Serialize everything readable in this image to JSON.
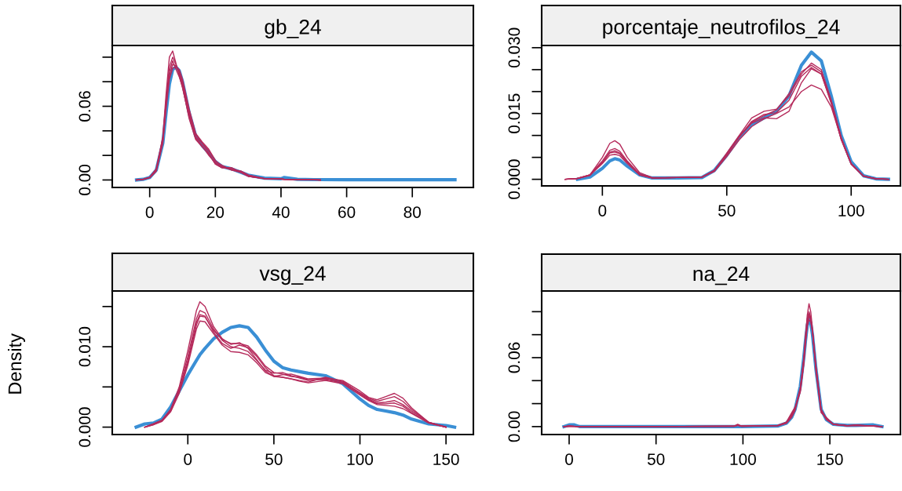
{
  "chart_data": [
    {
      "type": "line",
      "title": "gb_24",
      "grid": false,
      "marker": "none",
      "line_style": "solid",
      "x": [
        -4,
        -2,
        0,
        2,
        4,
        5,
        6,
        7,
        8,
        9,
        10,
        12,
        14,
        16,
        18,
        20,
        22,
        25,
        28,
        30,
        35,
        40,
        41,
        45,
        50,
        52,
        60,
        70,
        80,
        93
      ],
      "xlim": [
        -11.4,
        98.6
      ],
      "ylim": [
        -0.0061,
        0.1095
      ],
      "xticks": [
        0,
        20,
        40,
        60,
        80
      ],
      "yticks": [
        {
          "value": 0,
          "label": "0.00"
        },
        {
          "value": 0.02,
          "label": null
        },
        {
          "value": 0.04,
          "label": null
        },
        {
          "value": 0.06,
          "label": "0.06"
        },
        {
          "value": 0.08,
          "label": null
        },
        {
          "value": 0.1,
          "label": null
        }
      ],
      "series": [
        {
          "color": "#3a8fd5",
          "values": [
            0,
            0.0005,
            0.002,
            0.008,
            0.03,
            0.055,
            0.078,
            0.09,
            0.092,
            0.089,
            0.08,
            0.055,
            0.036,
            0.028,
            0.022,
            0.015,
            0.011,
            0.009,
            0.006,
            0.004,
            0.0015,
            0.001,
            0.002,
            0.0005,
            0.0003,
            0.0003,
            0.0002,
            0.0002,
            0.0002,
            0.0002
          ]
        },
        {
          "color": "#b52a5b",
          "values": [
            0,
            0.0005,
            0.002,
            0.009,
            0.035,
            0.07,
            0.1,
            0.105,
            0.095,
            0.085,
            0.075,
            0.052,
            0.035,
            0.03,
            0.022,
            0.013,
            0.01,
            0.01,
            0.006,
            0.003,
            0.001,
            0.0008,
            0.0005,
            0.0004,
            0.0002,
            0,
            null,
            null,
            null,
            null
          ]
        },
        {
          "color": "#b52a5b",
          "values": [
            0,
            0.0005,
            0.002,
            0.008,
            0.033,
            0.065,
            0.092,
            0.1,
            0.094,
            0.087,
            0.078,
            0.054,
            0.034,
            0.028,
            0.02,
            0.014,
            0.011,
            0.009,
            0.007,
            0.004,
            0.001,
            0.0008,
            0.0006,
            0.0004,
            0.0002,
            0,
            null,
            null,
            null,
            null
          ]
        },
        {
          "color": "#b52a5b",
          "values": [
            0,
            0.0004,
            0.0018,
            0.007,
            0.03,
            0.06,
            0.085,
            0.094,
            0.093,
            0.088,
            0.08,
            0.056,
            0.037,
            0.03,
            0.024,
            0.015,
            0.012,
            0.008,
            0.007,
            0.004,
            0.0012,
            0.0007,
            0.0005,
            0.0003,
            0.0001,
            0,
            null,
            null,
            null,
            null
          ]
        },
        {
          "color": "#b52a5b",
          "values": [
            0,
            0.0005,
            0.002,
            0.008,
            0.031,
            0.058,
            0.082,
            0.091,
            0.092,
            0.09,
            0.082,
            0.058,
            0.038,
            0.031,
            0.025,
            0.016,
            0.011,
            0.008,
            0.006,
            0.003,
            0.0012,
            0.0009,
            0.0005,
            0.0003,
            0.0002,
            0,
            null,
            null,
            null,
            null
          ]
        },
        {
          "color": "#b52a5b",
          "values": [
            0,
            0.0006,
            0.0022,
            0.009,
            0.034,
            0.063,
            0.088,
            0.097,
            0.09,
            0.084,
            0.076,
            0.05,
            0.033,
            0.027,
            0.021,
            0.013,
            0.01,
            0.009,
            0.006,
            0.003,
            0.001,
            0.0008,
            0.0004,
            0.0003,
            0.0001,
            0,
            null,
            null,
            null,
            null
          ]
        }
      ]
    },
    {
      "type": "line",
      "title": "porcentaje_neutrofilos_24",
      "grid": false,
      "marker": "none",
      "line_style": "solid",
      "x": [
        -15,
        -10,
        -5,
        0,
        3,
        5,
        7,
        10,
        15,
        20,
        30,
        40,
        45,
        50,
        55,
        60,
        65,
        70,
        75,
        80,
        84,
        88,
        92,
        96,
        100,
        105,
        110,
        115
      ],
      "xlim": [
        -24.4,
        119.8
      ],
      "ylim": [
        -0.0015,
        0.0305
      ],
      "xticks": [
        0,
        50,
        100
      ],
      "yticks": [
        {
          "value": 0,
          "label": "0.000"
        },
        {
          "value": 0.005,
          "label": null
        },
        {
          "value": 0.01,
          "label": null
        },
        {
          "value": 0.015,
          "label": "0.015"
        },
        {
          "value": 0.02,
          "label": null
        },
        {
          "value": 0.025,
          "label": null
        },
        {
          "value": 0.03,
          "label": "0.030"
        }
      ],
      "series": [
        {
          "color": "#3a8fd5",
          "values": [
            null,
            0,
            0.0005,
            0.0025,
            0.0042,
            0.0047,
            0.0044,
            0.003,
            0.001,
            0.0003,
            0.0003,
            0.0004,
            0.002,
            0.0055,
            0.0095,
            0.0125,
            0.014,
            0.0155,
            0.019,
            0.026,
            0.029,
            0.027,
            0.019,
            0.01,
            0.004,
            0.0008,
            0.0001,
            0
          ]
        },
        {
          "color": "#b52a5b",
          "values": [
            0,
            0.0002,
            0.001,
            0.005,
            0.0082,
            0.0088,
            0.008,
            0.005,
            0.0015,
            0.0004,
            0.0004,
            0.0005,
            0.002,
            0.006,
            0.01,
            0.014,
            0.0155,
            0.016,
            0.019,
            0.024,
            0.0265,
            0.025,
            0.018,
            0.0095,
            0.0035,
            0.0007,
            0.0001,
            0
          ]
        },
        {
          "color": "#b52a5b",
          "values": [
            0,
            0.0002,
            0.001,
            0.0042,
            0.0066,
            0.007,
            0.0064,
            0.0042,
            0.0012,
            0.0003,
            0.0004,
            0.0005,
            0.002,
            0.0058,
            0.0098,
            0.013,
            0.0145,
            0.0158,
            0.0195,
            0.0245,
            0.026,
            0.0245,
            0.0178,
            0.0095,
            0.0036,
            0.0007,
            0.0001,
            0
          ]
        },
        {
          "color": "#b52a5b",
          "values": [
            0,
            0.0002,
            0.0009,
            0.0039,
            0.0062,
            0.0065,
            0.006,
            0.004,
            0.0011,
            0.0003,
            0.0004,
            0.0005,
            0.0019,
            0.0056,
            0.0096,
            0.0128,
            0.014,
            0.0138,
            0.0155,
            0.022,
            0.0252,
            0.024,
            0.0175,
            0.0092,
            0.0035,
            0.0007,
            0.0001,
            0
          ]
        },
        {
          "color": "#b52a5b",
          "values": [
            0,
            0.0002,
            0.001,
            0.0038,
            0.006,
            0.0062,
            0.0058,
            0.0038,
            0.001,
            0.0003,
            0.0004,
            0.0005,
            0.002,
            0.0057,
            0.0097,
            0.0132,
            0.0148,
            0.0152,
            0.018,
            0.0235,
            0.0255,
            0.024,
            0.0172,
            0.009,
            0.0034,
            0.0007,
            0.0001,
            0
          ]
        },
        {
          "color": "#b52a5b",
          "values": [
            0,
            0.0002,
            0.0009,
            0.0036,
            0.0055,
            0.0057,
            0.0054,
            0.0036,
            0.001,
            0.0003,
            0.0004,
            0.0005,
            0.0018,
            0.0052,
            0.009,
            0.012,
            0.0138,
            0.015,
            0.0165,
            0.02,
            0.0215,
            0.0205,
            0.0165,
            0.0092,
            0.0036,
            0.0008,
            0.0001,
            0
          ]
        }
      ]
    },
    {
      "type": "line",
      "title": "vsg_24",
      "ylabel": "Density",
      "grid": false,
      "marker": "none",
      "line_style": "solid",
      "x": [
        -30,
        -25,
        -20,
        -15,
        -10,
        -5,
        0,
        5,
        7,
        10,
        15,
        20,
        25,
        30,
        35,
        40,
        45,
        50,
        55,
        60,
        65,
        70,
        80,
        90,
        100,
        105,
        110,
        115,
        120,
        125,
        130,
        140,
        150,
        155
      ],
      "xlim": [
        -43.9,
        165.9
      ],
      "ylim": [
        -0.00092,
        0.01693
      ],
      "xticks": [
        0,
        50,
        100,
        150
      ],
      "yticks": [
        {
          "value": 0,
          "label": "0.000"
        },
        {
          "value": 0.005,
          "label": null
        },
        {
          "value": 0.01,
          "label": "0.010"
        },
        {
          "value": 0.015,
          "label": null
        }
      ],
      "series": [
        {
          "color": "#3a8fd5",
          "values": [
            0,
            0.0004,
            0.0005,
            0.001,
            0.0025,
            0.0045,
            0.0065,
            0.0083,
            0.009,
            0.0098,
            0.011,
            0.0118,
            0.0124,
            0.0126,
            0.0124,
            0.0112,
            0.0096,
            0.0082,
            0.0074,
            0.0071,
            0.0069,
            0.0067,
            0.0064,
            0.0054,
            0.0035,
            0.0027,
            0.0022,
            0.002,
            0.0018,
            0.0015,
            0.001,
            0.0004,
            0.0002,
            0
          ]
        },
        {
          "color": "#b52a5b",
          "values": [
            null,
            0,
            0.0004,
            0.0009,
            0.0022,
            0.005,
            0.0095,
            0.0145,
            0.0156,
            0.015,
            0.0125,
            0.011,
            0.0103,
            0.0105,
            0.0098,
            0.0084,
            0.007,
            0.0063,
            0.0065,
            0.0066,
            0.0063,
            0.006,
            0.0061,
            0.0058,
            0.0045,
            0.0037,
            0.0034,
            0.0038,
            0.0042,
            0.0036,
            0.0024,
            0.0006,
            0,
            null
          ]
        },
        {
          "color": "#b52a5b",
          "values": [
            null,
            0,
            0.0004,
            0.0008,
            0.0021,
            0.0047,
            0.0088,
            0.0135,
            0.0145,
            0.0142,
            0.0122,
            0.0108,
            0.01,
            0.0098,
            0.0094,
            0.0083,
            0.0071,
            0.0067,
            0.0068,
            0.0064,
            0.0061,
            0.0058,
            0.006,
            0.0056,
            0.0043,
            0.0036,
            0.0032,
            0.0035,
            0.0038,
            0.0032,
            0.0022,
            0.0006,
            0,
            null
          ]
        },
        {
          "color": "#b52a5b",
          "values": [
            null,
            0,
            0.0003,
            0.0008,
            0.002,
            0.0045,
            0.0083,
            0.013,
            0.014,
            0.0138,
            0.0118,
            0.0104,
            0.0098,
            0.0102,
            0.0099,
            0.0088,
            0.0074,
            0.0064,
            0.0062,
            0.006,
            0.0058,
            0.0056,
            0.0062,
            0.0057,
            0.0042,
            0.0035,
            0.003,
            0.0031,
            0.0033,
            0.0028,
            0.002,
            0.0006,
            0,
            null
          ]
        },
        {
          "color": "#b52a5b",
          "values": [
            null,
            0,
            0.0004,
            0.0008,
            0.002,
            0.0044,
            0.008,
            0.0127,
            0.0138,
            0.0137,
            0.012,
            0.0109,
            0.0104,
            0.0104,
            0.0101,
            0.009,
            0.0076,
            0.0068,
            0.0066,
            0.0063,
            0.0062,
            0.0059,
            0.0059,
            0.0055,
            0.0041,
            0.0034,
            0.0029,
            0.0029,
            0.003,
            0.0026,
            0.0018,
            0.0005,
            0,
            null
          ]
        },
        {
          "color": "#b52a5b",
          "values": [
            null,
            0,
            0.0003,
            0.0007,
            0.0019,
            0.0042,
            0.0077,
            0.0122,
            0.0132,
            0.0131,
            0.0116,
            0.0102,
            0.0094,
            0.0093,
            0.009,
            0.008,
            0.0068,
            0.0063,
            0.0062,
            0.006,
            0.0057,
            0.0055,
            0.0058,
            0.0054,
            0.004,
            0.0033,
            0.0028,
            0.0027,
            0.0026,
            0.0023,
            0.0017,
            0.0005,
            0,
            null
          ]
        }
      ]
    },
    {
      "type": "line",
      "title": "na_24",
      "grid": false,
      "marker": "none",
      "line_style": "solid",
      "x": [
        -3,
        0,
        3,
        6,
        10,
        50,
        95,
        97,
        99,
        120,
        125,
        128,
        130,
        133,
        135,
        136,
        137,
        138,
        139,
        140,
        142,
        145,
        148,
        152,
        160,
        165,
        175,
        180
      ],
      "xlim": [
        -15.8,
        190.6
      ],
      "ylim": [
        -0.0069,
        0.118
      ],
      "xticks": [
        0,
        50,
        100,
        150
      ],
      "yticks": [
        {
          "value": 0,
          "label": "0.00"
        },
        {
          "value": 0.02,
          "label": null
        },
        {
          "value": 0.04,
          "label": null
        },
        {
          "value": 0.06,
          "label": "0.06"
        },
        {
          "value": 0.08,
          "label": null
        },
        {
          "value": 0.1,
          "label": null
        }
      ],
      "series": [
        {
          "color": "#3a8fd5",
          "values": [
            0,
            0.0015,
            0.0015,
            0,
            0,
            0,
            0,
            0,
            0,
            0.0005,
            0.003,
            0.008,
            0.015,
            0.035,
            0.06,
            0.075,
            0.088,
            0.095,
            0.09,
            0.08,
            0.05,
            0.015,
            0.006,
            0.002,
            0.001,
            0.001,
            0.0015,
            0
          ]
        },
        {
          "color": "#b52a5b",
          "values": [
            0,
            0.0005,
            0.0003,
            0,
            0,
            0,
            0.0005,
            0.002,
            0.0005,
            0.001,
            0.004,
            0.012,
            0.017,
            0.03,
            0.055,
            0.078,
            0.097,
            0.107,
            0.1,
            0.085,
            0.048,
            0.012,
            0.008,
            0.002,
            0.0008,
            0.0015,
            0.0005,
            0
          ]
        },
        {
          "color": "#b52a5b",
          "values": [
            0,
            0.0004,
            0.0002,
            0,
            0,
            0,
            0.0004,
            0.0015,
            0.0004,
            0.001,
            0.0035,
            0.01,
            0.016,
            0.033,
            0.06,
            0.08,
            0.094,
            0.1,
            0.095,
            0.083,
            0.05,
            0.013,
            0.007,
            0.002,
            0.0008,
            0.001,
            0.0005,
            0
          ]
        },
        {
          "color": "#b52a5b",
          "values": [
            0,
            0.0004,
            0.0002,
            0,
            0,
            0,
            0.0003,
            0.0012,
            0.0003,
            0.0008,
            0.003,
            0.009,
            0.015,
            0.034,
            0.058,
            0.074,
            0.09,
            0.098,
            0.094,
            0.084,
            0.052,
            0.014,
            0.006,
            0.002,
            0.0007,
            0.0012,
            0.0004,
            0
          ]
        },
        {
          "color": "#b52a5b",
          "values": [
            0,
            0.0003,
            0.0002,
            0,
            0,
            0,
            0.0003,
            0.001,
            0.0003,
            0.0008,
            0.003,
            0.008,
            0.014,
            0.032,
            0.057,
            0.075,
            0.089,
            0.096,
            0.093,
            0.082,
            0.051,
            0.015,
            0.007,
            0.002,
            0.0008,
            0.001,
            0.0004,
            0
          ]
        },
        {
          "color": "#b52a5b",
          "values": [
            0,
            0.0004,
            0.0002,
            0,
            0,
            0,
            0.0004,
            0.0013,
            0.0004,
            0.0009,
            0.0033,
            0.011,
            0.016,
            0.031,
            0.054,
            0.072,
            0.087,
            0.093,
            0.091,
            0.083,
            0.053,
            0.014,
            0.007,
            0.002,
            0.0007,
            0.0011,
            0.0004,
            0
          ]
        }
      ]
    }
  ]
}
